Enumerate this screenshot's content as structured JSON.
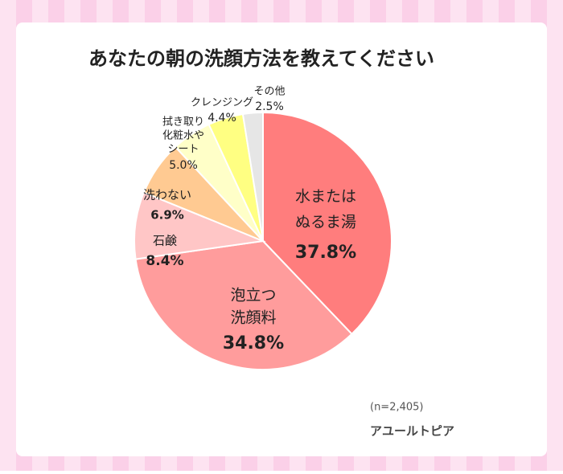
{
  "chart_data": {
    "type": "pie",
    "title": "あなたの朝の洗顔方法を教えてください",
    "categories": [
      [
        "水または",
        "ぬるま湯"
      ],
      [
        "泡立つ",
        "洗顔料"
      ],
      [
        "石鹸"
      ],
      [
        "洗わない"
      ],
      [
        "拭き取り",
        "化粧水や",
        "シート"
      ],
      [
        "クレンジング"
      ],
      [
        "その他"
      ]
    ],
    "values": [
      37.8,
      34.8,
      8.4,
      6.9,
      5.0,
      4.4,
      2.5
    ],
    "value_labels": [
      "37.8%",
      "34.8%",
      "8.4%",
      "6.9%",
      "5.0%",
      "4.4%",
      "2.5%"
    ],
    "colors": [
      "#ff7d7d",
      "#ff9c9c",
      "#ffc6c6",
      "#ffca92",
      "#ffffc8",
      "#ffff82",
      "#e6e6e6"
    ],
    "note": "(n=2,405)",
    "source": "アユールトピア"
  }
}
